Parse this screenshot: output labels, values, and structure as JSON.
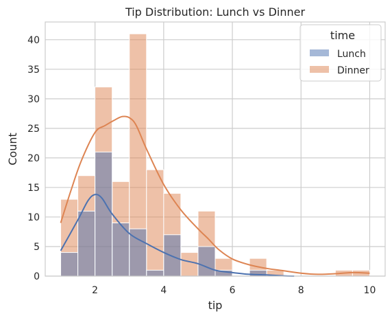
{
  "chart_data": {
    "type": "histogram",
    "title": "Tip Distribution: Lunch vs Dinner",
    "xlabel": "tip",
    "ylabel": "Count",
    "xlim": [
      0.55,
      10.45
    ],
    "ylim": [
      0,
      43
    ],
    "x_ticks": [
      2,
      4,
      6,
      8,
      10
    ],
    "y_ticks": [
      0,
      5,
      10,
      15,
      20,
      25,
      30,
      35,
      40
    ],
    "bin_edges": [
      1.0,
      1.5,
      2.0,
      2.5,
      3.0,
      3.5,
      4.0,
      4.5,
      5.0,
      5.5,
      6.0,
      6.5,
      7.0,
      7.5,
      8.0,
      8.5,
      9.0,
      9.5,
      10.0
    ],
    "grid": true,
    "legend": {
      "title": "time",
      "placement": "top-right"
    },
    "series": [
      {
        "name": "Lunch",
        "color": "#4c72b0",
        "counts": [
          4,
          11,
          21,
          9,
          8,
          1,
          7,
          0,
          5,
          1,
          0,
          1,
          0,
          0,
          0,
          0,
          0,
          0
        ],
        "kde": [
          [
            1.0,
            4.3
          ],
          [
            1.5,
            9.5
          ],
          [
            1.8,
            12.8
          ],
          [
            2.0,
            13.8
          ],
          [
            2.2,
            13.2
          ],
          [
            2.5,
            10.5
          ],
          [
            3.0,
            7.2
          ],
          [
            3.5,
            5.5
          ],
          [
            4.0,
            4.0
          ],
          [
            4.5,
            2.8
          ],
          [
            5.0,
            2.1
          ],
          [
            5.5,
            1.0
          ],
          [
            6.0,
            0.6
          ],
          [
            6.5,
            0.3
          ],
          [
            7.0,
            0.2
          ],
          [
            7.5,
            0.05
          ],
          [
            7.8,
            0.0
          ]
        ]
      },
      {
        "name": "Dinner",
        "color": "#dd8452",
        "counts": [
          13,
          17,
          32,
          16,
          41,
          18,
          14,
          4,
          11,
          3,
          0,
          3,
          1,
          0,
          0,
          0,
          1,
          1
        ],
        "kde": [
          [
            1.0,
            9.0
          ],
          [
            1.3,
            14.5
          ],
          [
            1.6,
            19.5
          ],
          [
            2.0,
            24.3
          ],
          [
            2.3,
            25.5
          ],
          [
            2.6,
            26.5
          ],
          [
            2.8,
            27.0
          ],
          [
            3.0,
            26.8
          ],
          [
            3.2,
            25.5
          ],
          [
            3.5,
            21.5
          ],
          [
            4.0,
            15.5
          ],
          [
            4.5,
            11.2
          ],
          [
            5.0,
            8.0
          ],
          [
            5.3,
            6.3
          ],
          [
            5.6,
            4.5
          ],
          [
            6.0,
            2.9
          ],
          [
            6.5,
            1.9
          ],
          [
            7.0,
            1.3
          ],
          [
            7.5,
            0.9
          ],
          [
            8.0,
            0.5
          ],
          [
            8.5,
            0.3
          ],
          [
            9.0,
            0.4
          ],
          [
            9.5,
            0.6
          ],
          [
            10.0,
            0.5
          ]
        ]
      }
    ]
  }
}
